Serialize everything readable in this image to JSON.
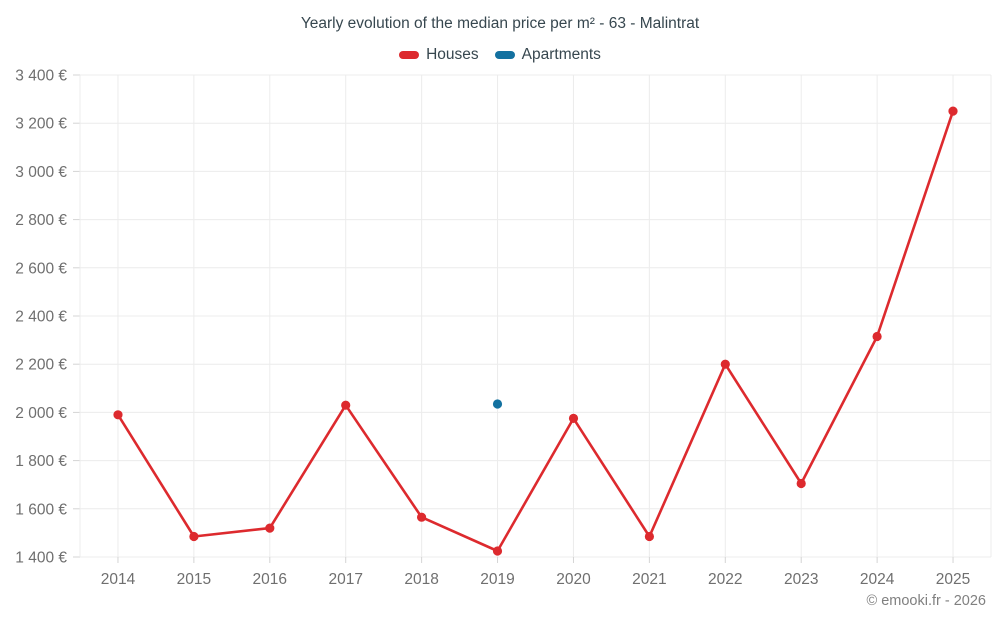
{
  "chart": {
    "footer": "© emooki.fr - 2026"
  },
  "chart_data": {
    "type": "line",
    "title": "Yearly evolution of the median price per m² - 63 - Malintrat",
    "categories": [
      "2014",
      "2015",
      "2016",
      "2017",
      "2018",
      "2019",
      "2020",
      "2021",
      "2022",
      "2023",
      "2024",
      "2025"
    ],
    "series": [
      {
        "name": "Houses",
        "color": "#dd2a2e",
        "values": [
          1990,
          1485,
          1520,
          2030,
          1565,
          1425,
          1975,
          1485,
          2200,
          1705,
          2315,
          3250
        ]
      },
      {
        "name": "Apartments",
        "color": "#1371a0",
        "values": [
          null,
          null,
          null,
          null,
          null,
          2035,
          null,
          null,
          null,
          null,
          null,
          null
        ]
      }
    ],
    "xlabel": "",
    "ylabel": "",
    "ylim": [
      1400,
      3400
    ],
    "y_ticks": [
      1400,
      1600,
      1800,
      2000,
      2200,
      2400,
      2600,
      2800,
      3000,
      3200,
      3400
    ],
    "y_tick_labels": [
      "1 400 €",
      "1 600 €",
      "1 800 €",
      "2 000 €",
      "2 200 €",
      "2 400 €",
      "2 600 €",
      "2 800 €",
      "3 000 €",
      "3 200 €",
      "3 400 €"
    ],
    "grid": true,
    "legend_position": "top",
    "grid_color": "#ececec",
    "tick_color": "#d4d4d4",
    "axis_label_color": "#6f6f6f"
  }
}
